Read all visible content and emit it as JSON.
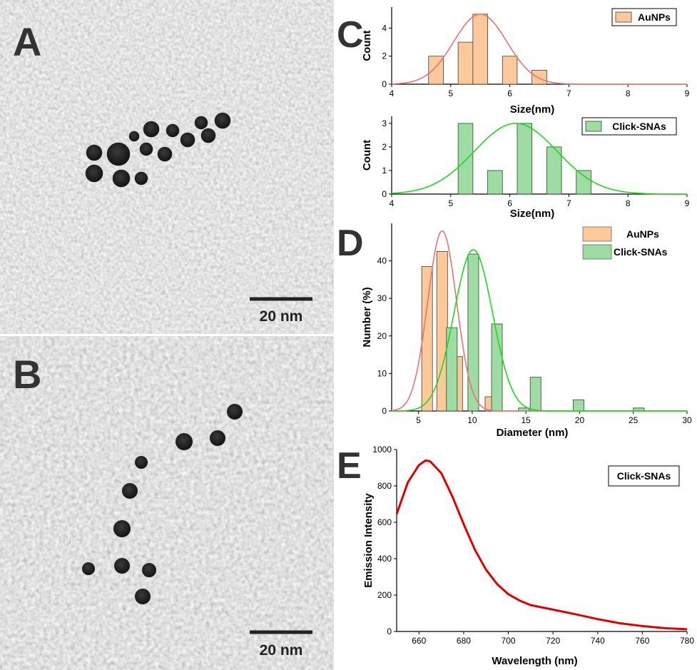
{
  "panels": {
    "A": {
      "letter": "A",
      "scale_bar": "20 nm"
    },
    "B": {
      "letter": "B",
      "scale_bar": "20 nm"
    },
    "C": {
      "letter": "C"
    },
    "D": {
      "letter": "D"
    },
    "E": {
      "letter": "E"
    }
  },
  "colors": {
    "aunps_fill": "#fcc99a",
    "aunps_curve": "#f07070",
    "snas_fill": "#9fdca3",
    "snas_curve": "#1ed81e",
    "emission": "#e00000",
    "tem_background": "#9a9a9a",
    "particle": "#1e1e1e"
  },
  "chart_data": [
    {
      "id": "C-top",
      "type": "bar",
      "xlabel": "Size(nm)",
      "ylabel": "Count",
      "xlim": [
        4,
        9
      ],
      "ylim": [
        0,
        5.5
      ],
      "x_ticks": [
        4,
        5,
        6,
        7,
        8,
        9
      ],
      "y_ticks": [
        0,
        2,
        4
      ],
      "bin_width": 0.25,
      "series": [
        {
          "name": "AuNPs",
          "x": [
            4.75,
            5.0,
            5.25,
            5.5,
            5.75,
            6.0,
            6.25,
            6.5
          ],
          "values": [
            2,
            0,
            3,
            5,
            0,
            2,
            0,
            1
          ],
          "fit": {
            "type": "gaussian",
            "mean": 5.5,
            "sd": 0.45,
            "amp": 5.0
          }
        }
      ],
      "legend": "top-right"
    },
    {
      "id": "C-bottom",
      "type": "bar",
      "xlabel": "Size(nm)",
      "ylabel": "Count",
      "xlim": [
        4,
        9
      ],
      "ylim": [
        0,
        3.3
      ],
      "x_ticks": [
        4,
        5,
        6,
        7,
        8,
        9
      ],
      "y_ticks": [
        0,
        1,
        2,
        3
      ],
      "bin_width": 0.25,
      "series": [
        {
          "name": "Click-SNAs",
          "x": [
            5.25,
            5.75,
            6.25,
            6.75,
            7.25
          ],
          "values": [
            3,
            1,
            3,
            2,
            1
          ],
          "fit": {
            "type": "gaussian",
            "mean": 6.1,
            "sd": 0.7,
            "amp": 3.0
          }
        }
      ],
      "legend": "top-right"
    },
    {
      "id": "D",
      "type": "bar",
      "xlabel": "Diameter  (nm)",
      "ylabel": "Number  (%)",
      "xlim": [
        2.5,
        30
      ],
      "ylim": [
        0,
        50
      ],
      "x_ticks": [
        5,
        10,
        15,
        20,
        25,
        30
      ],
      "y_ticks": [
        0,
        10,
        20,
        30,
        40
      ],
      "bin_width": 1.0,
      "series": [
        {
          "name": "AuNPs",
          "x": [
            5.8,
            7.2,
            8.6,
            10.1,
            11.7
          ],
          "values": [
            38.5,
            42.5,
            14.5,
            0,
            3.8
          ],
          "fit": {
            "type": "gaussian",
            "mean": 7.2,
            "sd": 1.35,
            "amp": 48
          }
        },
        {
          "name": "Click-SNAs",
          "x": [
            8.1,
            10.1,
            12.3,
            14.8,
            15.9,
            19.9,
            25.5
          ],
          "values": [
            22.2,
            41.8,
            23.2,
            0.8,
            9.0,
            3.0,
            0.8
          ],
          "fit": {
            "type": "gaussian",
            "mean": 10.1,
            "sd": 1.8,
            "amp": 43
          }
        }
      ],
      "legend": "top-right"
    },
    {
      "id": "E",
      "type": "line",
      "xlabel": "Wavelength (nm)",
      "ylabel": "Emission Intensity",
      "xlim": [
        650,
        780
      ],
      "ylim": [
        0,
        1000
      ],
      "x_ticks": [
        660,
        680,
        700,
        720,
        740,
        760,
        780
      ],
      "y_ticks": [
        0,
        200,
        400,
        600,
        800,
        1000
      ],
      "series": [
        {
          "name": "Click-SNAs",
          "x": [
            650,
            655,
            660,
            663,
            665,
            670,
            675,
            680,
            685,
            690,
            695,
            700,
            705,
            710,
            720,
            730,
            740,
            750,
            760,
            770,
            780
          ],
          "values": [
            645,
            820,
            915,
            940,
            935,
            870,
            740,
            590,
            450,
            340,
            260,
            205,
            170,
            145,
            120,
            95,
            68,
            45,
            30,
            18,
            12
          ]
        }
      ],
      "legend": "top-right"
    }
  ]
}
